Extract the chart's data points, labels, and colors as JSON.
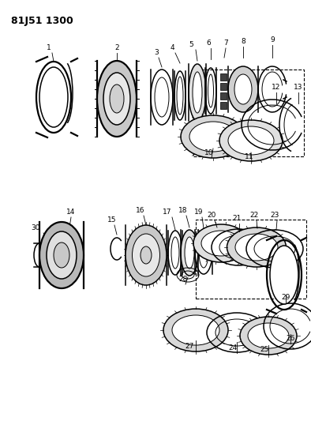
{
  "title": "81J51 1300",
  "background_color": "#ffffff",
  "line_color": "#000000",
  "figsize": [
    3.94,
    5.33
  ],
  "dpi": 100
}
